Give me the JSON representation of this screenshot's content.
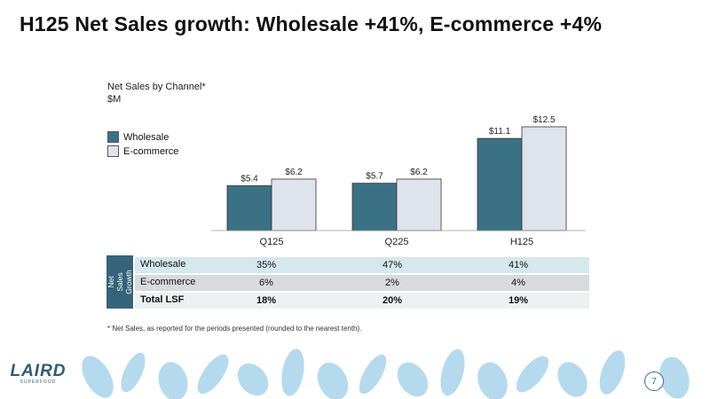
{
  "slide": {
    "title": "H125 Net Sales growth: Wholesale +41%, E-commerce +4%",
    "page_number": "7",
    "footnote": "* Net Sales, as reported for the periods presented (rounded to the nearest tenth).",
    "logo_text": "LAIRD",
    "logo_subtext": "SUPERFOOD"
  },
  "colors": {
    "wholesale": "#3a7185",
    "ecommerce": "#dfe3ec",
    "accent": "#35647a",
    "decor": "#a9d4ea"
  },
  "chart_data": {
    "type": "bar",
    "title": "Net Sales by Channel*",
    "ylabel": "$M",
    "xlabel": "",
    "categories": [
      "Q125",
      "Q225",
      "H125"
    ],
    "series": [
      {
        "name": "Wholesale",
        "values": [
          5.4,
          5.7,
          11.1
        ],
        "labels": [
          "$5.4",
          "$5.7",
          "$11.1"
        ]
      },
      {
        "name": "E-commerce",
        "values": [
          6.2,
          6.2,
          12.5
        ],
        "labels": [
          "$6.2",
          "$6.2",
          "$12.5"
        ]
      }
    ],
    "ylim": [
      0,
      12.5
    ],
    "grid": false,
    "legend": "top-left"
  },
  "growth_table": {
    "side_label": "Net Sales\nGrowth",
    "rows": [
      {
        "label": "Wholesale",
        "values": [
          "35%",
          "47%",
          "41%"
        ]
      },
      {
        "label": "E-commerce",
        "values": [
          "6%",
          "2%",
          "4%"
        ]
      },
      {
        "label": "Total LSF",
        "values": [
          "18%",
          "20%",
          "19%"
        ]
      }
    ]
  }
}
